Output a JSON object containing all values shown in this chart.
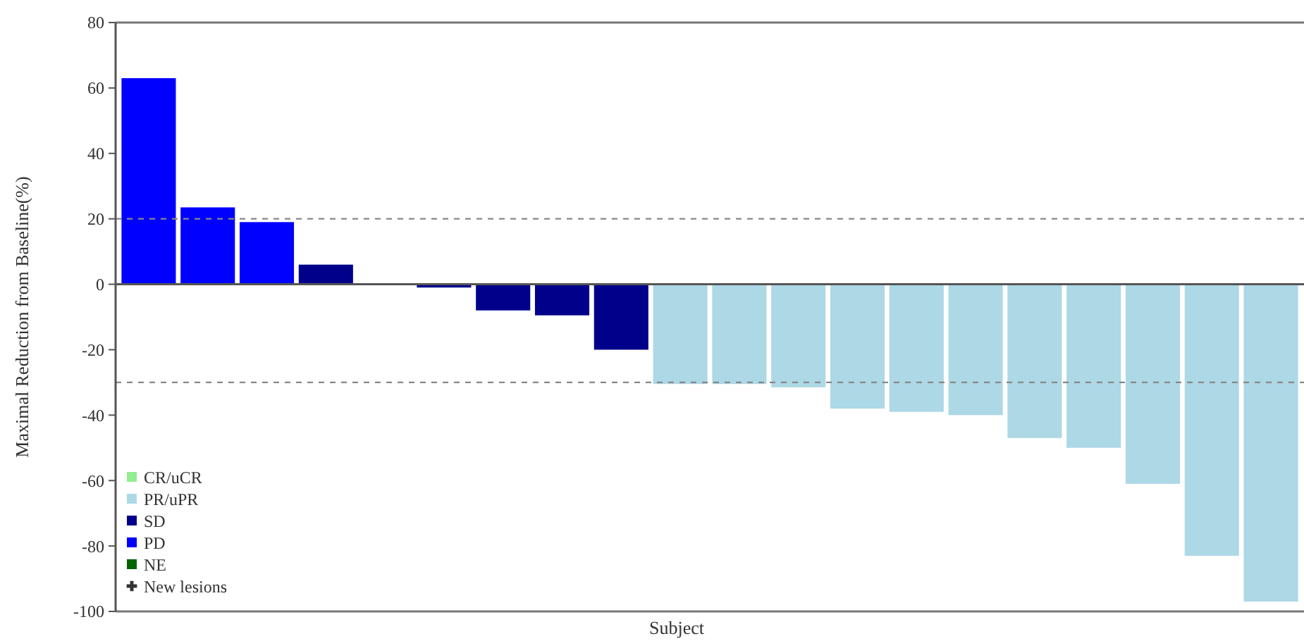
{
  "chart_data": {
    "type": "bar",
    "xlabel": "Subject",
    "ylabel": "Maximal Reduction from Baseline(%)",
    "categories": [
      null,
      null,
      null,
      null,
      null,
      null,
      null,
      null,
      null,
      null,
      null,
      null,
      null,
      null,
      null,
      null,
      null,
      null,
      null,
      null
    ],
    "series": [
      {
        "name": "CR/uCR",
        "color": "#90ee90",
        "values": [
          null,
          null,
          null,
          null,
          null,
          null,
          null,
          null,
          null,
          null,
          null,
          null,
          null,
          null,
          null,
          null,
          null,
          null,
          null,
          null
        ]
      },
      {
        "name": "PR/uPR",
        "color": "#add8e6",
        "values": [
          null,
          null,
          null,
          null,
          null,
          null,
          null,
          null,
          null,
          -30.5,
          -30.5,
          -31.5,
          -38,
          -39,
          -40,
          -47,
          -50,
          -61,
          -83,
          -97
        ]
      },
      {
        "name": "SD",
        "color": "#00008b",
        "values": [
          null,
          null,
          null,
          6,
          0,
          -1,
          -8,
          -9.5,
          -20,
          null,
          null,
          null,
          null,
          null,
          null,
          null,
          null,
          null,
          null,
          null
        ]
      },
      {
        "name": "PD",
        "color": "#0000ff",
        "values": [
          63,
          23.5,
          19,
          null,
          null,
          null,
          null,
          null,
          null,
          null,
          null,
          null,
          null,
          null,
          null,
          null,
          null,
          null,
          null,
          null
        ]
      },
      {
        "name": "NE",
        "color": "#006400",
        "values": [
          null,
          null,
          null,
          null,
          null,
          null,
          null,
          null,
          null,
          null,
          null,
          null,
          null,
          null,
          null,
          null,
          null,
          null,
          null,
          null
        ]
      },
      {
        "name": "New lesions",
        "type": "scatter",
        "marker": "cross",
        "color": "#333333",
        "values": [
          null,
          null,
          null,
          null,
          null,
          null,
          null,
          null,
          null,
          null,
          null,
          null,
          null,
          null,
          null,
          null,
          null,
          null,
          null,
          null
        ]
      }
    ],
    "ylim": [
      -100,
      80
    ],
    "yticks": [
      -100,
      -80,
      -60,
      -40,
      -20,
      0,
      20,
      40,
      60,
      80
    ],
    "ref_lines": [
      {
        "axis": "y",
        "value": 20,
        "color": "#888888",
        "line_style": "dashed"
      },
      {
        "axis": "y",
        "value": -30,
        "color": "#888888",
        "line_style": "dashed"
      }
    ],
    "legend": "bottom left",
    "grid": false
  }
}
